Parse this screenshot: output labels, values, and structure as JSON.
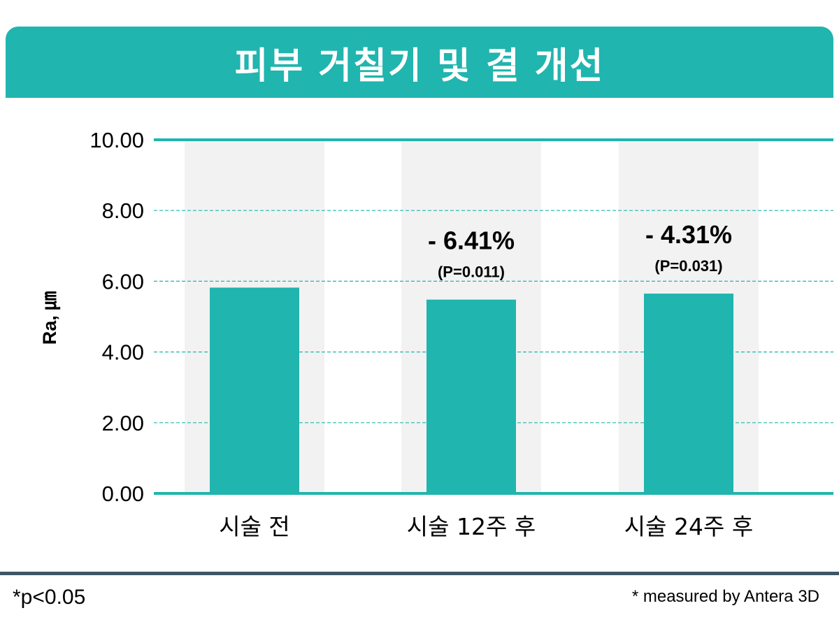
{
  "title": "피부 거칠기 및 결 개선",
  "colors": {
    "accent": "#20b5ae",
    "bar": "#20b5ae",
    "band": "#f2f2f2",
    "footer_rule": "#3d5766"
  },
  "footnotes": {
    "left": "*p<0.05",
    "right": "* measured by Antera 3D"
  },
  "chart_data": {
    "type": "bar",
    "title": "피부 거칠기 및 결 개선",
    "ylabel": "Ra, ㎛",
    "xlabel": "",
    "ylim": [
      0,
      10
    ],
    "yticks": [
      "0.00",
      "2.00",
      "4.00",
      "6.00",
      "8.00",
      "10.00"
    ],
    "ytick_values": [
      0,
      2,
      4,
      6,
      8,
      10
    ],
    "grid": true,
    "categories": [
      "시술 전",
      "시술 12주 후",
      "시술 24주 후"
    ],
    "values": [
      5.82,
      5.48,
      5.65
    ],
    "annotations": [
      {
        "category": "시술 전",
        "change": "",
        "p": ""
      },
      {
        "category": "시술 12주 후",
        "change": "- 6.41%",
        "p": "(P=0.011)"
      },
      {
        "category": "시술 24주 후",
        "change": "- 4.31%",
        "p": "(P=0.031)"
      }
    ]
  }
}
